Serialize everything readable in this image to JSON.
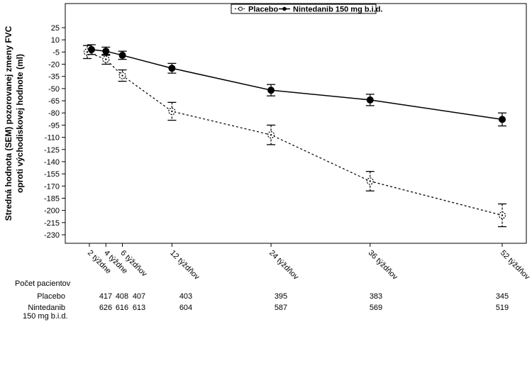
{
  "chart_data": {
    "type": "line",
    "ylabel": "Stredná hodnota (SEM) pozorovanej zmeny FVC oproti východiskovej hodnote (ml)",
    "ylim": [
      -240,
      40
    ],
    "yticks": [
      25,
      10,
      -5,
      -20,
      -35,
      -50,
      -65,
      -80,
      -95,
      -110,
      -125,
      -140,
      -155,
      -170,
      -185,
      -200,
      -215,
      -230
    ],
    "x_weeks": [
      2,
      4,
      6,
      12,
      24,
      36,
      52
    ],
    "xtick_labels": [
      "2 týždne",
      "4 týždne",
      "6 týždňov",
      "12 týždňov",
      "24 týždňov",
      "36 týždňov",
      "52 týždňov"
    ],
    "legend": {
      "placement": "top-center"
    },
    "series": [
      {
        "name": "Placebo",
        "style": "dashed-open-circle",
        "color": "#000000",
        "values": [
          -5,
          -14,
          -34,
          -78,
          -107,
          -164,
          -206
        ],
        "error": [
          8,
          6,
          7,
          11,
          12,
          12,
          14
        ]
      },
      {
        "name": "Nintedanib 150 mg b.i.d.",
        "style": "solid-filled-circle",
        "color": "#000000",
        "values": [
          -2,
          -4,
          -9,
          -25,
          -52,
          -64,
          -88
        ],
        "error": [
          6,
          5,
          5,
          6,
          7,
          7,
          8
        ]
      }
    ]
  },
  "patients_table": {
    "header": "Počet pacientov",
    "rows": [
      {
        "label": "Placebo",
        "values": [
          "",
          "417",
          "408",
          "407",
          "403",
          "395",
          "383",
          "345"
        ]
      },
      {
        "label": "Nintedanib",
        "sublabel": "150 mg b.i.d.",
        "values": [
          "",
          "626",
          "616",
          "613",
          "604",
          "587",
          "569",
          "519"
        ]
      }
    ]
  }
}
